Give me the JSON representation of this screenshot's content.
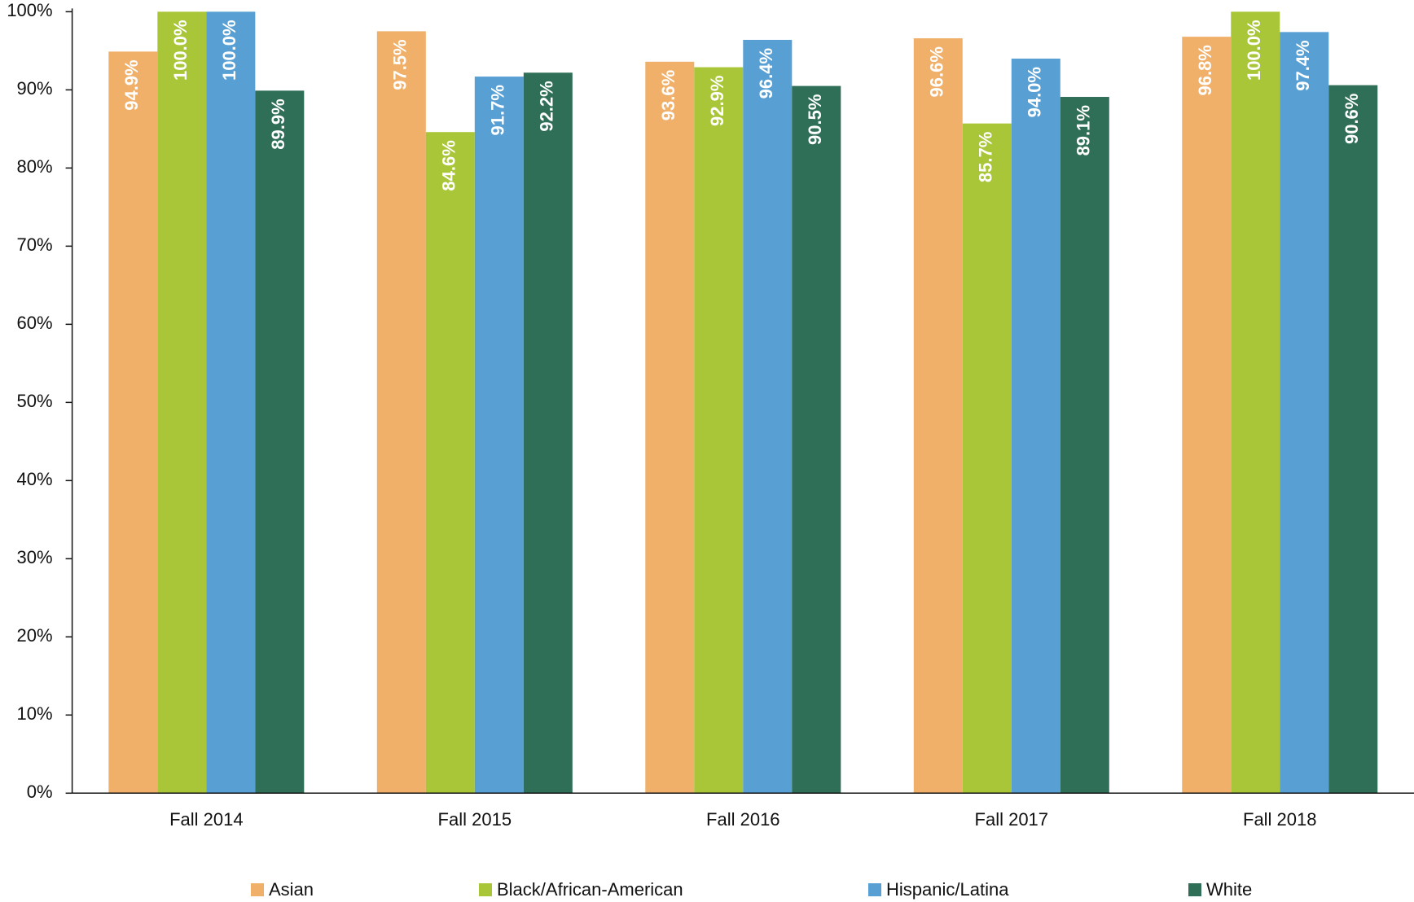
{
  "chart_data": {
    "type": "bar",
    "categories": [
      "Fall 2014",
      "Fall 2015",
      "Fall 2016",
      "Fall 2017",
      "Fall 2018"
    ],
    "series": [
      {
        "name": "Asian",
        "color": "#f0b06a",
        "values": [
          94.9,
          97.5,
          93.6,
          96.6,
          96.8
        ],
        "value_labels": [
          "94.9%",
          "97.5%",
          "93.6%",
          "96.6%",
          "96.8%"
        ]
      },
      {
        "name": "Black/African-American",
        "color": "#a8c637",
        "values": [
          100.0,
          84.6,
          92.9,
          85.7,
          100.0
        ],
        "value_labels": [
          "100.0%",
          "84.6%",
          "92.9%",
          "85.7%",
          "100.0%"
        ]
      },
      {
        "name": "Hispanic/Latina",
        "color": "#58a0d4",
        "values": [
          100.0,
          91.7,
          96.4,
          94.0,
          97.4
        ],
        "value_labels": [
          "100.0%",
          "91.7%",
          "96.4%",
          "94.0%",
          "97.4%"
        ]
      },
      {
        "name": "White",
        "color": "#2f6e57",
        "values": [
          89.9,
          92.2,
          90.5,
          89.1,
          90.6
        ],
        "value_labels": [
          "89.9%",
          "92.2%",
          "90.5%",
          "89.1%",
          "90.6%"
        ]
      }
    ],
    "ylim": [
      0,
      100
    ],
    "yticks": [
      {
        "value": 0,
        "label": "0%"
      },
      {
        "value": 10,
        "label": "10%"
      },
      {
        "value": 20,
        "label": "20%"
      },
      {
        "value": 30,
        "label": "30%"
      },
      {
        "value": 40,
        "label": "40%"
      },
      {
        "value": 50,
        "label": "50%"
      },
      {
        "value": 60,
        "label": "60%"
      },
      {
        "value": 70,
        "label": "70%"
      },
      {
        "value": 80,
        "label": "80%"
      },
      {
        "value": 90,
        "label": "90%"
      },
      {
        "value": 100,
        "label": "100%"
      }
    ],
    "grid": false,
    "legend": "bottom"
  }
}
